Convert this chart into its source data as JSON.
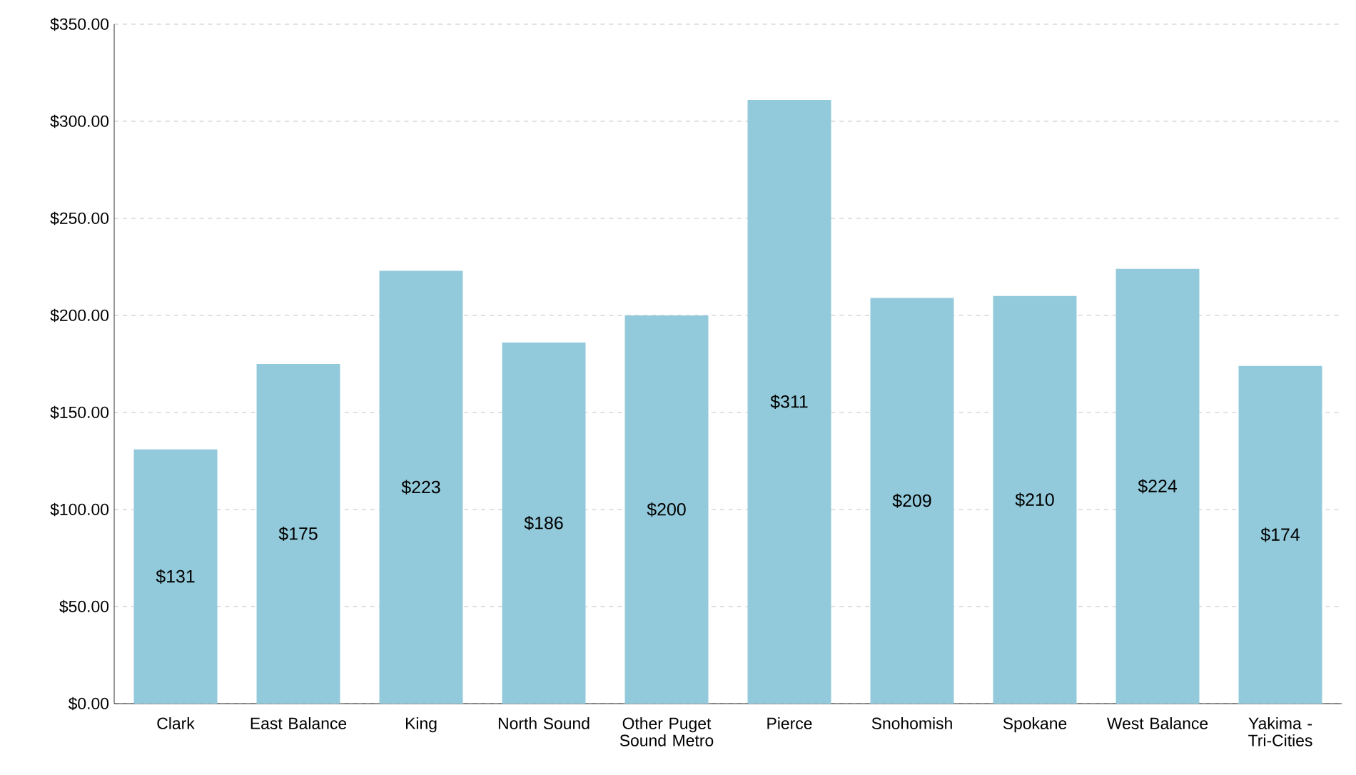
{
  "chart_data": {
    "type": "bar",
    "categories": [
      "Clark",
      "East Balance",
      "King",
      "North Sound",
      "Other Puget Sound Metro",
      "Pierce",
      "Snohomish",
      "Spokane",
      "West Balance",
      "Yakima - Tri-Cities"
    ],
    "values": [
      131,
      175,
      223,
      186,
      200,
      311,
      209,
      210,
      224,
      174
    ],
    "value_labels": [
      "$131",
      "$175",
      "$223",
      "$186",
      "$200",
      "$311",
      "$209",
      "$210",
      "$224",
      "$174"
    ],
    "color": "#92cadb",
    "ylim": [
      0,
      350
    ],
    "yticks": [
      {
        "value": 0,
        "label": "$0.00"
      },
      {
        "value": 50,
        "label": "$50.00"
      },
      {
        "value": 100,
        "label": "$100.00"
      },
      {
        "value": 150,
        "label": "$150.00"
      },
      {
        "value": 200,
        "label": "$200.00"
      },
      {
        "value": 250,
        "label": "$250.00"
      },
      {
        "value": 300,
        "label": "$300.00"
      },
      {
        "value": 350,
        "label": "$350.00"
      }
    ],
    "grid": "y"
  }
}
